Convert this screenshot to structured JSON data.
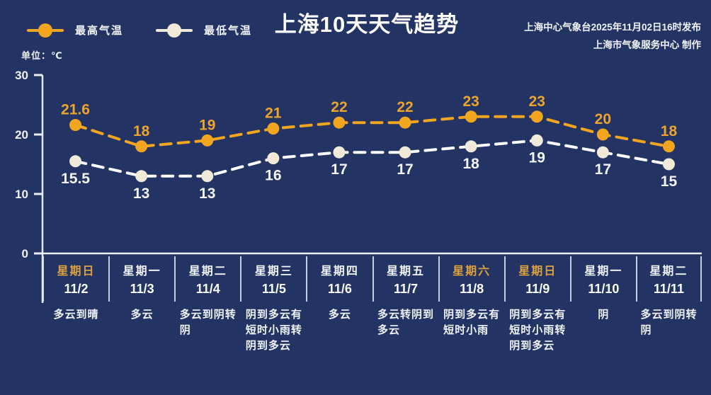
{
  "header": {
    "title": "上海10天天气趋势",
    "issued_line": "上海中心气象台2025年11月02日16时发布",
    "producer_line": "上海市气象服务中心  制作"
  },
  "legend": {
    "high_label": "最高气温",
    "low_label": "最低气温"
  },
  "axis": {
    "unit_label": "单位：℃",
    "ticks": [
      30,
      20,
      10,
      0
    ]
  },
  "colors": {
    "background": "#233363",
    "high_series": "#f2a51f",
    "low_series_line": "#ffffff",
    "low_series_marker": "#f1ead8",
    "high_label_text": "#eda42d",
    "low_label_text": "#f6f7fb",
    "weekend_text": "#dda23e",
    "axis_line": "#e8edf8"
  },
  "chart_data": {
    "type": "line",
    "title": "上海10天天气趋势",
    "ylabel": "单位：℃",
    "ylim": [
      0,
      30
    ],
    "y_ticks": [
      0,
      10,
      20,
      30
    ],
    "grid": false,
    "legend_position": "top-left",
    "line_style": "dashed",
    "series": [
      {
        "name": "最高气温",
        "color": "#f2a51f",
        "marker_color": "#f2a51f",
        "values": [
          21.6,
          18,
          19,
          21,
          22,
          22,
          23,
          23,
          20,
          18
        ]
      },
      {
        "name": "最低气温",
        "color": "#ffffff",
        "marker_color": "#f1ead8",
        "values": [
          15.5,
          13,
          13,
          16,
          17,
          17,
          18,
          19,
          17,
          15
        ]
      }
    ],
    "days": [
      {
        "weekday": "星期日",
        "date": "11/2",
        "weather": "多云到晴",
        "highlighted": true
      },
      {
        "weekday": "星期一",
        "date": "11/3",
        "weather": "多云",
        "highlighted": false
      },
      {
        "weekday": "星期二",
        "date": "11/4",
        "weather": "多云到阴转阴",
        "highlighted": false
      },
      {
        "weekday": "星期三",
        "date": "11/5",
        "weather": "阴到多云有短时小雨转阴到多云",
        "highlighted": false
      },
      {
        "weekday": "星期四",
        "date": "11/6",
        "weather": "多云",
        "highlighted": false
      },
      {
        "weekday": "星期五",
        "date": "11/7",
        "weather": "多云转阴到多云",
        "highlighted": false
      },
      {
        "weekday": "星期六",
        "date": "11/8",
        "weather": "阴到多云有短时小雨",
        "highlighted": true
      },
      {
        "weekday": "星期日",
        "date": "11/9",
        "weather": "阴到多云有短时小雨转阴到多云",
        "highlighted": true
      },
      {
        "weekday": "星期一",
        "date": "11/10",
        "weather": "阴",
        "highlighted": false
      },
      {
        "weekday": "星期二",
        "date": "11/11",
        "weather": "多云到阴转阴",
        "highlighted": false
      }
    ]
  }
}
